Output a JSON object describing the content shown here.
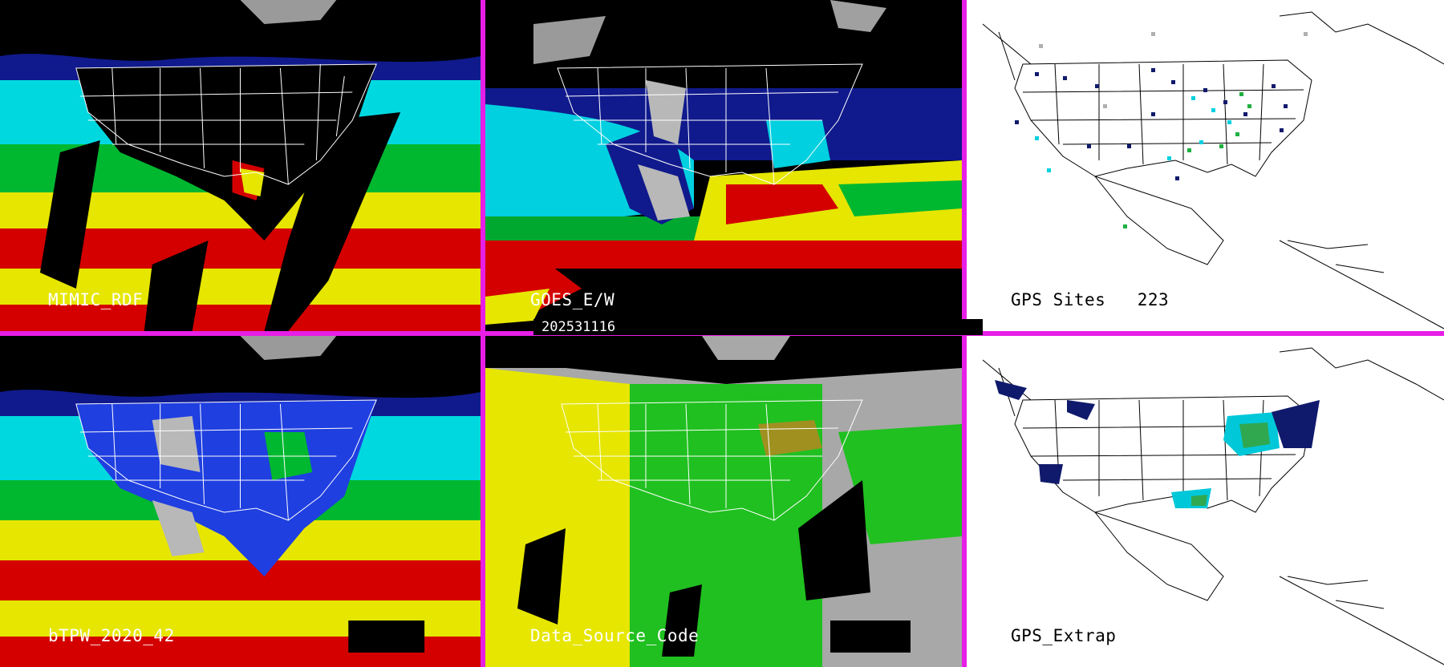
{
  "timestamp": "202531116",
  "panels": {
    "mimic": {
      "label": "MIMIC_RDF"
    },
    "goes": {
      "label": "GOES_E/W"
    },
    "gps_sites": {
      "label": "GPS Sites",
      "count": "223"
    },
    "btpw": {
      "label": "bTPW_2020_42"
    },
    "data_source": {
      "label": "Data_Source_Code"
    },
    "gps_extrap": {
      "label": "GPS_Extrap"
    }
  },
  "colors": {
    "separator": "#e61ee6",
    "tpw_scale": [
      "#000000",
      "#101a8c",
      "#1f3fe0",
      "#00e6e6",
      "#00c000",
      "#ffff00",
      "#d40000",
      "#808080"
    ],
    "source_codes": [
      "#e6e600",
      "#20c020",
      "#a8a8a8",
      "#000000"
    ]
  }
}
